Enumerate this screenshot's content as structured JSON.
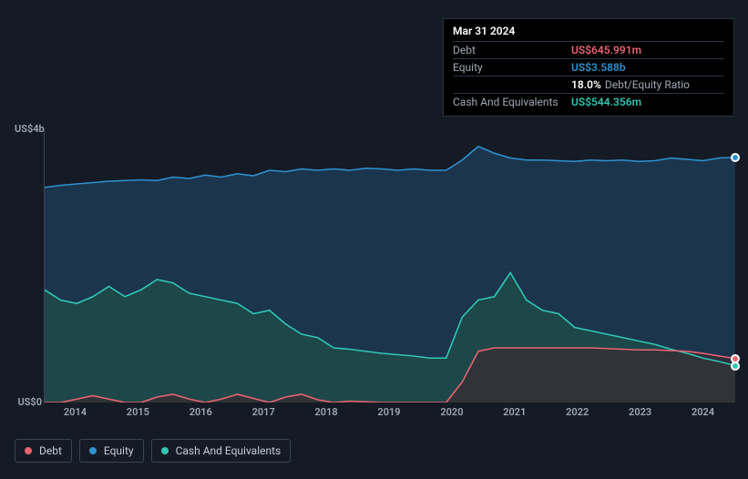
{
  "tooltip": {
    "date": "Mar 31 2024",
    "rows": [
      {
        "label": "Debt",
        "value": "US$645.991m",
        "color": "#e86471"
      },
      {
        "label": "Equity",
        "value": "US$3.588b",
        "color": "#2e92d1"
      },
      {
        "label": "",
        "pct": "18.0%",
        "extra": "Debt/Equity Ratio"
      },
      {
        "label": "Cash And Equivalents",
        "value": "US$544.356m",
        "color": "#2fc7b5"
      }
    ]
  },
  "chart": {
    "type": "area",
    "background_color": "#151b24",
    "grid_color": "#222c3a",
    "axis_color": "#3a4555",
    "label_color": "#a0a8b4",
    "label_fontsize": 11,
    "ylim": [
      0,
      4
    ],
    "y_ticks": [
      {
        "v": 0,
        "label": "US$0"
      },
      {
        "v": 4,
        "label": "US$4b"
      }
    ],
    "x_categories": [
      "2014",
      "2015",
      "2016",
      "2017",
      "2018",
      "2019",
      "2020",
      "2021",
      "2022",
      "2023",
      "2024"
    ],
    "gridline_y": [
      1,
      2,
      3
    ],
    "series": [
      {
        "name": "Equity",
        "color": "#2e92d1",
        "fill": "#1c3a55",
        "fill_opacity": 0.85,
        "values": [
          3.15,
          3.18,
          3.2,
          3.22,
          3.24,
          3.25,
          3.26,
          3.25,
          3.3,
          3.28,
          3.33,
          3.3,
          3.35,
          3.32,
          3.4,
          3.38,
          3.42,
          3.4,
          3.42,
          3.4,
          3.43,
          3.42,
          3.4,
          3.42,
          3.4,
          3.4,
          3.55,
          3.75,
          3.65,
          3.58,
          3.55,
          3.55,
          3.54,
          3.53,
          3.55,
          3.54,
          3.55,
          3.53,
          3.54,
          3.58,
          3.56,
          3.54,
          3.58,
          3.59
        ]
      },
      {
        "name": "Cash And Equivalents",
        "color": "#2fc7b5",
        "fill": "#1d4a49",
        "fill_opacity": 0.85,
        "values": [
          1.65,
          1.5,
          1.45,
          1.55,
          1.7,
          1.55,
          1.65,
          1.8,
          1.75,
          1.6,
          1.55,
          1.5,
          1.45,
          1.3,
          1.35,
          1.15,
          1.0,
          0.95,
          0.8,
          0.78,
          0.75,
          0.72,
          0.7,
          0.68,
          0.65,
          0.65,
          1.25,
          1.5,
          1.55,
          1.9,
          1.5,
          1.35,
          1.3,
          1.1,
          1.05,
          1.0,
          0.95,
          0.9,
          0.85,
          0.78,
          0.72,
          0.65,
          0.6,
          0.54
        ]
      },
      {
        "name": "Debt",
        "color": "#e86471",
        "fill": "#3a2a30",
        "fill_opacity": 0.65,
        "values": [
          0,
          0,
          0.05,
          0.1,
          0.05,
          0,
          0,
          0.08,
          0.12,
          0.05,
          0,
          0.05,
          0.12,
          0.06,
          0,
          0.08,
          0.12,
          0.04,
          0,
          0.02,
          0.01,
          0,
          0,
          0,
          0,
          0,
          0.3,
          0.75,
          0.8,
          0.8,
          0.8,
          0.8,
          0.8,
          0.8,
          0.8,
          0.79,
          0.78,
          0.77,
          0.77,
          0.76,
          0.75,
          0.72,
          0.68,
          0.645
        ]
      }
    ],
    "end_markers": [
      {
        "series": "Equity",
        "color": "#2e92d1"
      },
      {
        "series": "Cash And Equivalents",
        "color": "#2fc7b5"
      },
      {
        "series": "Debt",
        "color": "#e86471"
      }
    ]
  },
  "legend": {
    "items": [
      {
        "label": "Debt",
        "color": "#e86471"
      },
      {
        "label": "Equity",
        "color": "#2e92d1"
      },
      {
        "label": "Cash And Equivalents",
        "color": "#2fc7b5"
      }
    ]
  }
}
